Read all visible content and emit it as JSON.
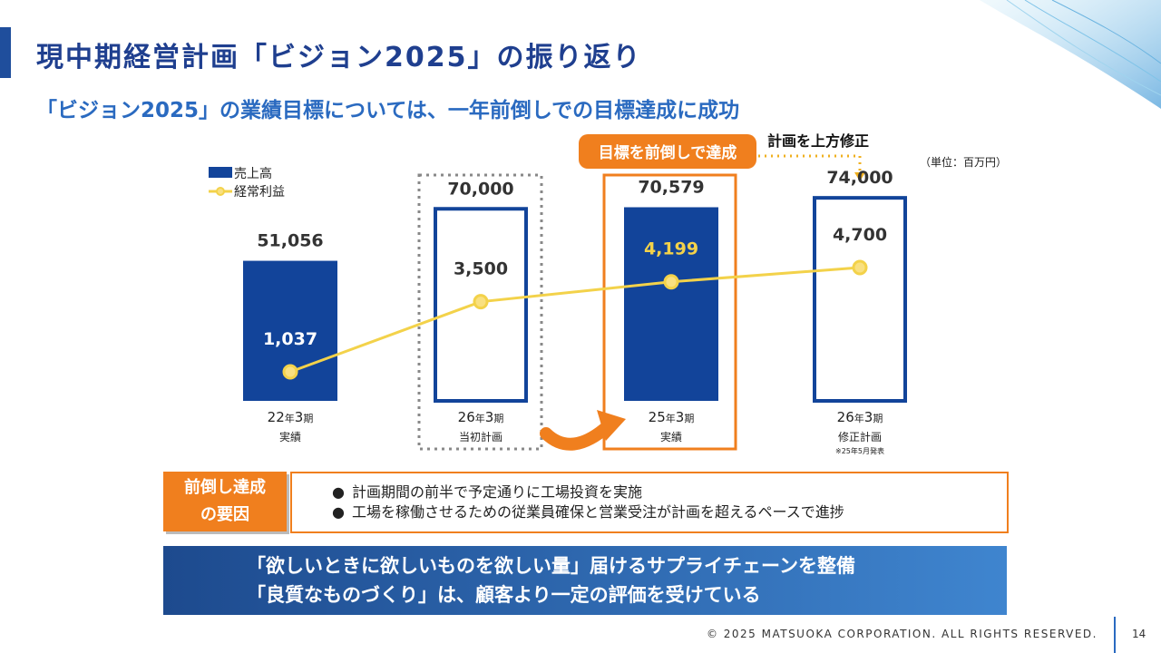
{
  "title": "現中期経営計画「ビジョン2025」の振り返り",
  "subtitle": "「ビジョン2025」の業績目標については、一年前倒しでの目標達成に成功",
  "unit": "（単位：百万円）",
  "callout_achieved": "目標を前倒しで達成",
  "callout_revised": "計画を上方修正",
  "chart_data": {
    "type": "bar",
    "title": "",
    "legend": [
      {
        "name": "売上高",
        "kind": "bar",
        "color": "#12449a"
      },
      {
        "name": "経常利益",
        "kind": "line",
        "color": "#f3d24a"
      }
    ],
    "categories": [
      {
        "period_num": "22",
        "period_year": "年",
        "period_num2": "3",
        "period_month": "期",
        "sub": "実績",
        "note": ""
      },
      {
        "period_num": "26",
        "period_year": "年",
        "period_num2": "3",
        "period_month": "期",
        "sub": "当初計画",
        "note": ""
      },
      {
        "period_num": "25",
        "period_year": "年",
        "period_num2": "3",
        "period_month": "期",
        "sub": "実績",
        "note": ""
      },
      {
        "period_num": "26",
        "period_year": "年",
        "period_num2": "3",
        "period_month": "期",
        "sub": "修正計画",
        "note": "※25年5月発表"
      }
    ],
    "series": [
      {
        "name": "売上高",
        "values": [
          51056,
          70000,
          70579,
          74000
        ],
        "labels": [
          "51,056",
          "70,000",
          "70,579",
          "74,000"
        ],
        "filled": [
          true,
          false,
          true,
          false
        ]
      },
      {
        "name": "経常利益",
        "values": [
          1037,
          3500,
          4199,
          4700
        ],
        "labels": [
          "1,037",
          "3,500",
          "4,199",
          "4,700"
        ]
      }
    ],
    "ylim_sales": [
      0,
      80000
    ],
    "ylim_profit": [
      0,
      6500
    ]
  },
  "factor": {
    "label_line1": "前倒し達成",
    "label_line2": "の要因",
    "bullets": [
      "計画期間の前半で予定通りに工場投資を実施",
      "工場を稼働させるための従業員確保と営業受注が計画を超えるペースで進捗"
    ]
  },
  "banner": {
    "line1": "「欲しいときに欲しいものを欲しい量」届けるサプライチェーンを整備",
    "line2": "「良質なものづくり」は、顧客より一定の評価を受けている"
  },
  "footer": "© 2025 MATSUOKA CORPORATION. ALL RIGHTS RESERVED.",
  "page_number": "14",
  "colors": {
    "navy": "#12449a",
    "orange": "#f07f1e",
    "yellow": "#f3d24a",
    "title": "#1f3f8f"
  }
}
